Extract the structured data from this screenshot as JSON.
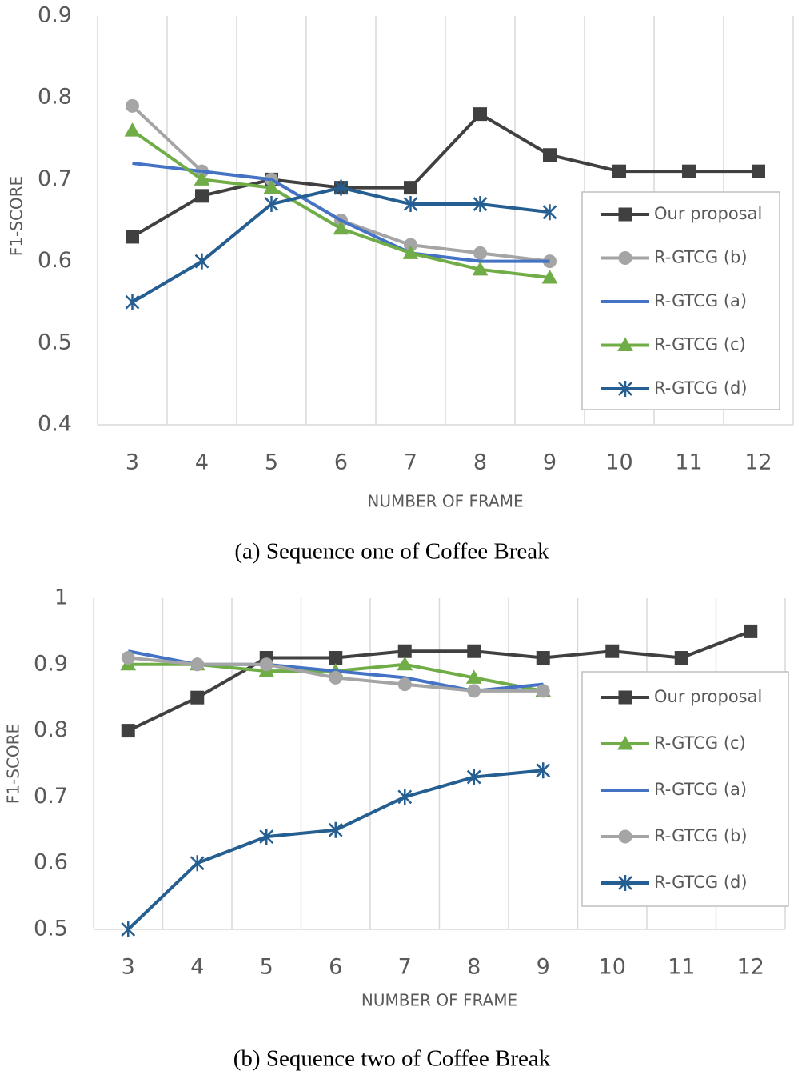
{
  "chart_data": [
    {
      "type": "line",
      "caption": "(a) Sequence one of Coffee Break",
      "xlabel": "NUMBER OF FRAME",
      "ylabel": "F1-SCORE",
      "categories": [
        "3",
        "4",
        "5",
        "6",
        "7",
        "8",
        "9",
        "10",
        "11",
        "12"
      ],
      "ylim": [
        0.4,
        0.9
      ],
      "yticks": [
        0.4,
        0.5,
        0.6,
        0.7,
        0.8,
        0.9
      ],
      "grid": "x",
      "legend": "right",
      "series": [
        {
          "name": "Our proposal",
          "color": "#404040",
          "marker": "square",
          "values": [
            0.63,
            0.68,
            0.7,
            0.69,
            0.69,
            0.78,
            0.73,
            0.71,
            0.71,
            0.71
          ]
        },
        {
          "name": "R-GTCG (b)",
          "color": "#a5a5a5",
          "marker": "circle",
          "values": [
            0.79,
            0.71,
            0.7,
            0.65,
            0.62,
            0.61,
            0.6,
            null,
            null,
            null
          ]
        },
        {
          "name": "R-GTCG (a)",
          "color": "#4472c4",
          "marker": "none",
          "values": [
            0.72,
            0.71,
            0.7,
            0.65,
            0.61,
            0.6,
            0.6,
            null,
            null,
            null
          ]
        },
        {
          "name": "R-GTCG (c)",
          "color": "#70ad47",
          "marker": "triangle",
          "values": [
            0.76,
            0.7,
            0.69,
            0.64,
            0.61,
            0.59,
            0.58,
            null,
            null,
            null
          ]
        },
        {
          "name": "R-GTCG (d)",
          "color": "#255e91",
          "marker": "star",
          "values": [
            0.55,
            0.6,
            0.67,
            0.69,
            0.67,
            0.67,
            0.66,
            null,
            null,
            null
          ]
        }
      ]
    },
    {
      "type": "line",
      "caption": "(b) Sequence two of Coffee Break",
      "xlabel": "NUMBER OF FRAME",
      "ylabel": "F1-SCORE",
      "categories": [
        "3",
        "4",
        "5",
        "6",
        "7",
        "8",
        "9",
        "10",
        "11",
        "12"
      ],
      "ylim": [
        0.5,
        1
      ],
      "yticks": [
        0.5,
        0.6,
        0.7,
        0.8,
        0.9,
        1
      ],
      "grid": "x",
      "legend": "right",
      "series": [
        {
          "name": "Our proposal",
          "color": "#404040",
          "marker": "square",
          "values": [
            0.8,
            0.85,
            0.91,
            0.91,
            0.92,
            0.92,
            0.91,
            0.92,
            0.91,
            0.95
          ]
        },
        {
          "name": "R-GTCG (c)",
          "color": "#70ad47",
          "marker": "triangle",
          "values": [
            0.9,
            0.9,
            0.89,
            0.89,
            0.9,
            0.88,
            0.86,
            null,
            null,
            null
          ]
        },
        {
          "name": "R-GTCG (a)",
          "color": "#4472c4",
          "marker": "none",
          "values": [
            0.92,
            0.9,
            0.9,
            0.89,
            0.88,
            0.86,
            0.87,
            null,
            null,
            null
          ]
        },
        {
          "name": "R-GTCG (b)",
          "color": "#a5a5a5",
          "marker": "circle",
          "values": [
            0.91,
            0.9,
            0.9,
            0.88,
            0.87,
            0.86,
            0.86,
            null,
            null,
            null
          ]
        },
        {
          "name": "R-GTCG (d)",
          "color": "#255e91",
          "marker": "star",
          "values": [
            0.5,
            0.6,
            0.64,
            0.65,
            0.7,
            0.73,
            0.74,
            null,
            null,
            null
          ]
        }
      ]
    }
  ]
}
